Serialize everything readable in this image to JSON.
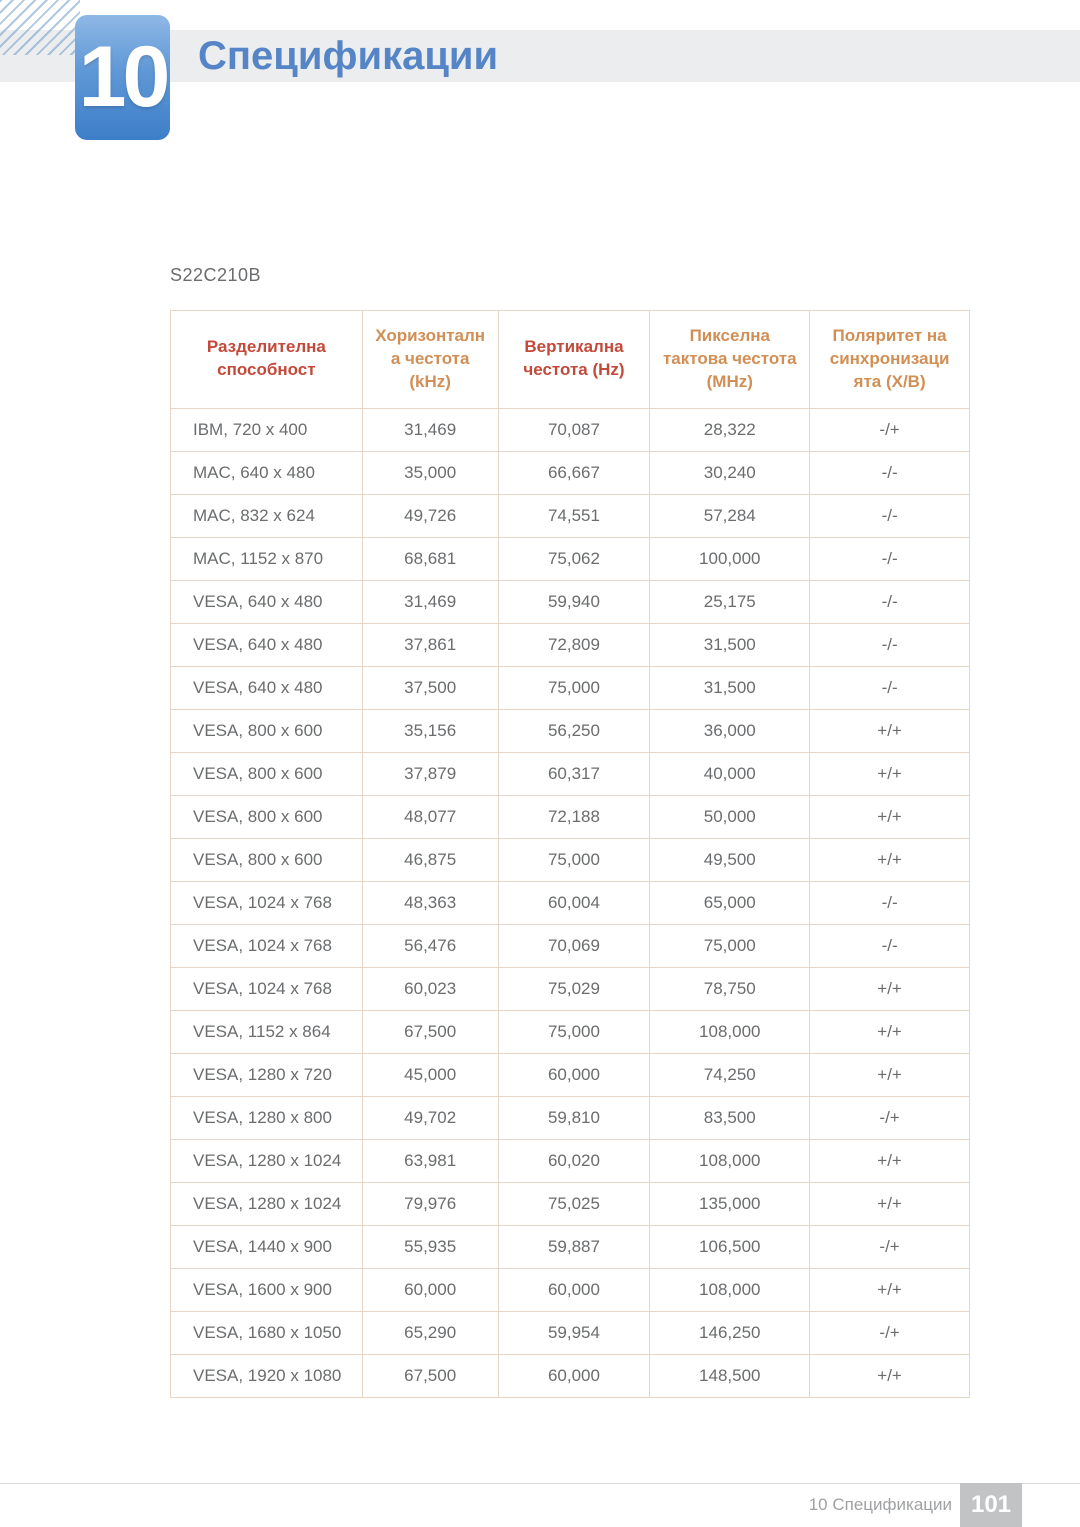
{
  "colors": {
    "accent": "#5585c6",
    "header_primary": "#c24a3a",
    "header_secondary": "#d18f55",
    "body_text": "#6a6c6e",
    "table_border": "#e7d6c6",
    "top_band": "#ecedee",
    "page_box": "#c1c3c5"
  },
  "chapter": {
    "number": "10",
    "title": "Спецификации"
  },
  "model": "S22C210B",
  "table": {
    "columns": [
      {
        "key": "res",
        "label": "Разделителна способност",
        "color_key": "header_primary"
      },
      {
        "key": "hfreq",
        "label": "Хоризонталн а честота (kHz)",
        "color_key": "header_secondary"
      },
      {
        "key": "vfreq",
        "label": "Вертикална честота (Hz)",
        "color_key": "header_primary"
      },
      {
        "key": "pclk",
        "label": "Пикселна тактова честота (MHz)",
        "color_key": "header_secondary"
      },
      {
        "key": "sync",
        "label": "Поляритет на синхронизаци ята (Х/В)",
        "color_key": "header_secondary"
      }
    ],
    "rows": [
      [
        "IBM, 720 x 400",
        "31,469",
        "70,087",
        "28,322",
        "-/+"
      ],
      [
        "MAC, 640 x 480",
        "35,000",
        "66,667",
        "30,240",
        "-/-"
      ],
      [
        "MAC, 832 x 624",
        "49,726",
        "74,551",
        "57,284",
        "-/-"
      ],
      [
        "MAC, 1152 x 870",
        "68,681",
        "75,062",
        "100,000",
        "-/-"
      ],
      [
        "VESA, 640 x 480",
        "31,469",
        "59,940",
        "25,175",
        "-/-"
      ],
      [
        "VESA, 640 x 480",
        "37,861",
        "72,809",
        "31,500",
        "-/-"
      ],
      [
        "VESA, 640 x 480",
        "37,500",
        "75,000",
        "31,500",
        "-/-"
      ],
      [
        "VESA, 800 x 600",
        "35,156",
        "56,250",
        "36,000",
        "+/+"
      ],
      [
        "VESA, 800 x 600",
        "37,879",
        "60,317",
        "40,000",
        "+/+"
      ],
      [
        "VESA, 800 x 600",
        "48,077",
        "72,188",
        "50,000",
        "+/+"
      ],
      [
        "VESA, 800 x 600",
        "46,875",
        "75,000",
        "49,500",
        "+/+"
      ],
      [
        "VESA, 1024 x 768",
        "48,363",
        "60,004",
        "65,000",
        "-/-"
      ],
      [
        "VESA, 1024 x 768",
        "56,476",
        "70,069",
        "75,000",
        "-/-"
      ],
      [
        "VESA, 1024 x 768",
        "60,023",
        "75,029",
        "78,750",
        "+/+"
      ],
      [
        "VESA, 1152 x 864",
        "67,500",
        "75,000",
        "108,000",
        "+/+"
      ],
      [
        "VESA, 1280 x 720",
        "45,000",
        "60,000",
        "74,250",
        "+/+"
      ],
      [
        "VESA, 1280 x 800",
        "49,702",
        "59,810",
        "83,500",
        "-/+"
      ],
      [
        "VESA, 1280 x 1024",
        "63,981",
        "60,020",
        "108,000",
        "+/+"
      ],
      [
        "VESA, 1280 x 1024",
        "79,976",
        "75,025",
        "135,000",
        "+/+"
      ],
      [
        "VESA, 1440 x 900",
        "55,935",
        "59,887",
        "106,500",
        "-/+"
      ],
      [
        "VESA, 1600 x 900",
        "60,000",
        "60,000",
        "108,000",
        "+/+"
      ],
      [
        "VESA, 1680 x 1050",
        "65,290",
        "59,954",
        "146,250",
        "-/+"
      ],
      [
        "VESA, 1920 x 1080",
        "67,500",
        "60,000",
        "148,500",
        "+/+"
      ]
    ]
  },
  "footer": {
    "text": "10 Спецификации",
    "page": "101"
  }
}
